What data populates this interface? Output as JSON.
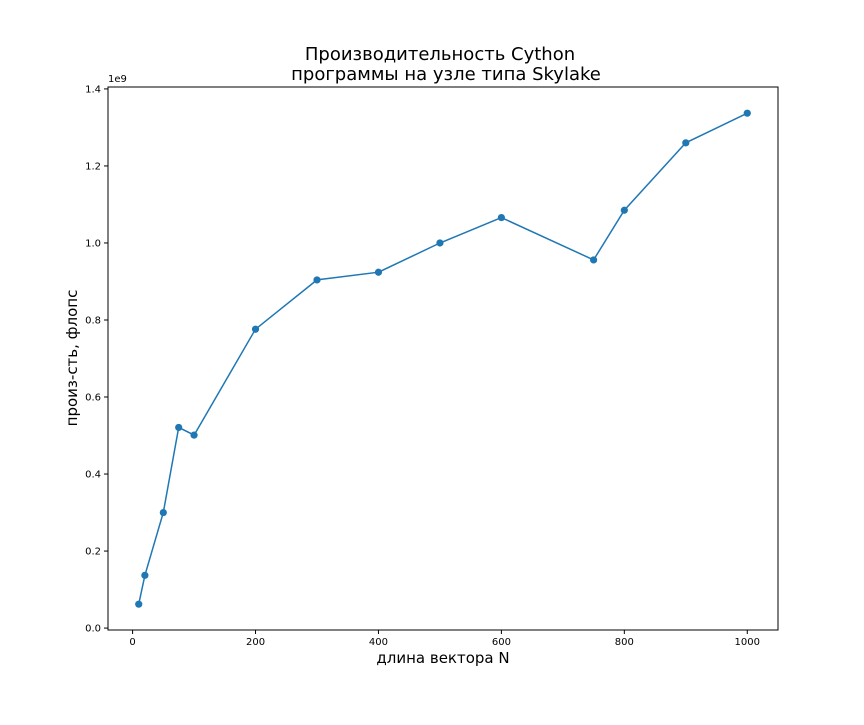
{
  "chart_data": {
    "type": "line",
    "title_lines": [
      "Производительность Cython",
      "программы на узле типа Skylake"
    ],
    "xlabel": "длина вектора N",
    "ylabel": "произ-сть, флопс",
    "y_offset_label": "1e9",
    "xlim": [
      -40,
      1050
    ],
    "ylim": [
      -5000000.0,
      1405000000.0
    ],
    "x_ticks": [
      0,
      200,
      400,
      600,
      800,
      1000
    ],
    "x_tick_labels": [
      "0",
      "200",
      "400",
      "600",
      "800",
      "1000"
    ],
    "y_ticks": [
      0,
      200000000,
      400000000,
      600000000,
      800000000,
      1000000000,
      1200000000,
      1400000000
    ],
    "y_tick_labels": [
      "0.0",
      "0.2",
      "0.4",
      "0.6",
      "0.8",
      "1.0",
      "1.2",
      "1.4"
    ],
    "grid": false,
    "series": [
      {
        "x": [
          10,
          20,
          50,
          75,
          100,
          200,
          300,
          400,
          500,
          600,
          750,
          800,
          900,
          1000
        ],
        "y": [
          62000000,
          137000000,
          300000000,
          521000000,
          501000000,
          776000000,
          904000000,
          924000000,
          1000000000,
          1066000000,
          956000000,
          1085000000,
          1260000000,
          1337000000
        ],
        "color": "#1f77b4",
        "marker": "circle"
      }
    ]
  }
}
